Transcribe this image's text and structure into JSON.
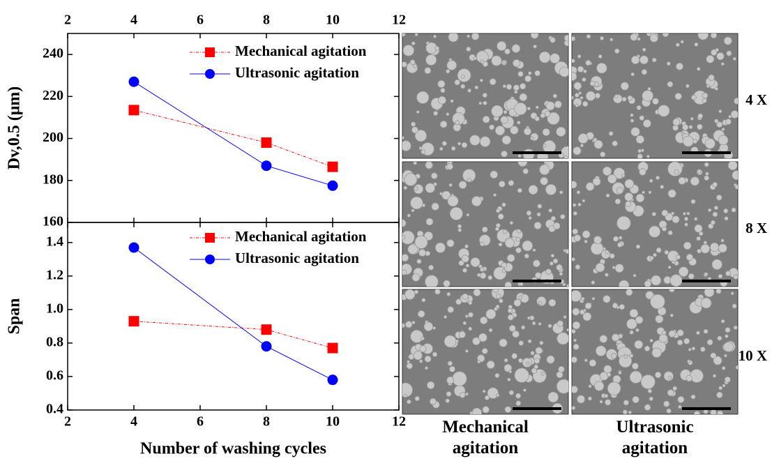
{
  "chart_data": [
    {
      "type": "line",
      "ylabel": "Dv,0.5 (μm)",
      "xlim": [
        2,
        12
      ],
      "xticks": [
        2,
        4,
        6,
        8,
        10,
        12
      ],
      "ylim": [
        160,
        250
      ],
      "yticks": [
        160,
        180,
        200,
        220,
        240
      ],
      "legend": "upper right",
      "series": [
        {
          "name": "Mechanical agitation",
          "color": "#ff0000",
          "marker": "square",
          "x": [
            4,
            8,
            10
          ],
          "values": [
            213.5,
            198,
            186.5
          ]
        },
        {
          "name": "Ultrasonic agitation",
          "color": "#0000ff",
          "marker": "circle",
          "x": [
            4,
            8,
            10
          ],
          "values": [
            227,
            187,
            177.5
          ]
        }
      ]
    },
    {
      "type": "line",
      "ylabel": "Span",
      "xlabel": "Number of washing cycles",
      "xlim": [
        2,
        12
      ],
      "xticks": [
        2,
        4,
        6,
        8,
        10,
        12
      ],
      "ylim": [
        0.4,
        1.52
      ],
      "yticks": [
        0.4,
        0.6,
        0.8,
        {
          "value": 1,
          "label": "1.0"
        },
        1.2,
        1.4
      ],
      "legend": "upper right",
      "series": [
        {
          "name": "Mechanical agitation",
          "color": "#ff0000",
          "marker": "square",
          "x": [
            4,
            8,
            10
          ],
          "values": [
            0.93,
            0.88,
            0.77
          ]
        },
        {
          "name": "Ultrasonic agitation",
          "color": "#0000ff",
          "marker": "circle",
          "x": [
            4,
            8,
            10
          ],
          "values": [
            1.37,
            0.78,
            0.58
          ]
        }
      ]
    }
  ],
  "micrographs": {
    "column_labels": [
      "Mechanical agitation",
      "Ultrasonic agitation"
    ],
    "row_labels": [
      "4 X",
      "8 X",
      "10 X"
    ]
  }
}
